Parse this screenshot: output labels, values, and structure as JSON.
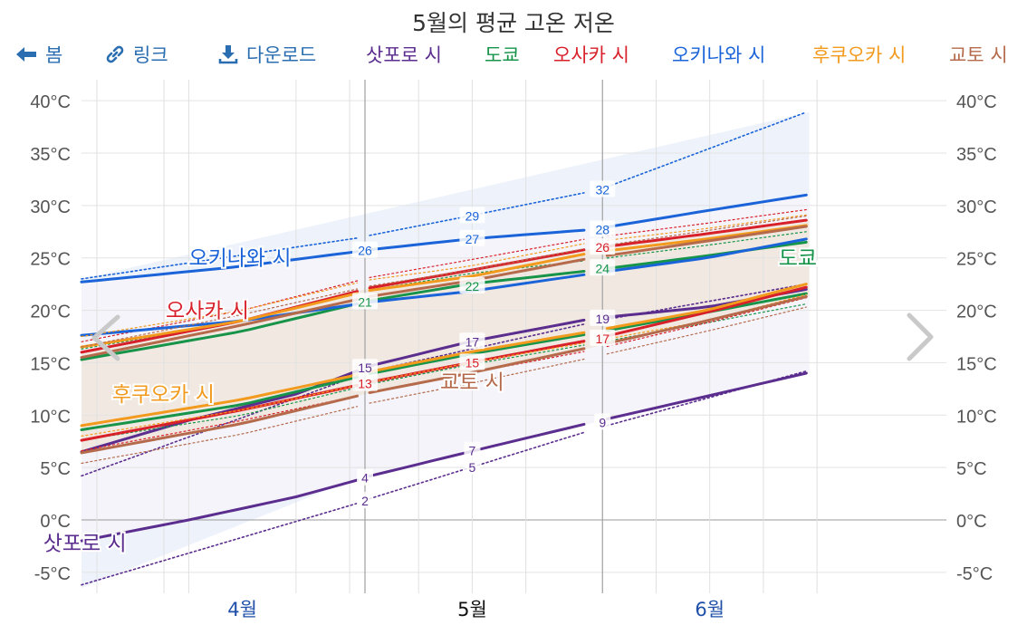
{
  "chart_data": {
    "type": "line",
    "title": "5월의 평균 고온 저온",
    "x_range": [
      "03-25",
      "06-29"
    ],
    "ylim": [
      -7,
      42
    ],
    "y_ticks": [
      -5,
      0,
      5,
      10,
      15,
      20,
      25,
      30,
      35,
      40
    ],
    "y_tick_labels": [
      "-5°C",
      "0°C",
      "5°C",
      "10°C",
      "15°C",
      "20°C",
      "25°C",
      "30°C",
      "35°C",
      "40°C"
    ],
    "month_labels": [
      {
        "date": "04-15",
        "label": "4월"
      },
      {
        "date": "05-15",
        "label": "5월"
      },
      {
        "date": "06-15",
        "label": "6월"
      }
    ],
    "month_boundaries": [
      "05-01",
      "06-01"
    ],
    "week_gridlines": [
      "04-08",
      "04-22",
      "04-29",
      "05-08",
      "05-15",
      "05-22",
      "06-08",
      "06-15",
      "06-22",
      "06-29"
    ],
    "band": {
      "low": [
        [
          "03-25",
          -6.5
        ],
        [
          "06-28",
          21.2
        ]
      ],
      "high": [
        [
          "03-25",
          23
        ],
        [
          "06-28",
          38.9
        ]
      ]
    },
    "series": [
      {
        "name": "삿포로 시",
        "color": "#5b2d8e",
        "high": [
          [
            "03-25",
            6.5
          ],
          [
            "04-08",
            9.5
          ],
          [
            "04-22",
            12.0
          ],
          [
            "05-01",
            14.5
          ],
          [
            "05-15",
            17.0
          ],
          [
            "05-31",
            19.2
          ],
          [
            "06-15",
            20.3
          ],
          [
            "06-28",
            22.0
          ]
        ],
        "low": [
          [
            "03-25",
            -2.0
          ],
          [
            "04-08",
            0.0
          ],
          [
            "04-22",
            2.2
          ],
          [
            "05-01",
            4.0
          ],
          [
            "05-15",
            6.5
          ],
          [
            "05-31",
            9.3
          ],
          [
            "06-15",
            11.8
          ],
          [
            "06-28",
            14.0
          ]
        ],
        "high_p90": [
          [
            "03-25",
            4.2
          ],
          [
            "05-01",
            14.0
          ],
          [
            "06-01",
            19.0
          ],
          [
            "06-28",
            22.5
          ]
        ],
        "low_p10": [
          [
            "03-25",
            -6.2
          ],
          [
            "05-01",
            1.8
          ],
          [
            "06-01",
            8.8
          ],
          [
            "06-28",
            14.2
          ]
        ]
      },
      {
        "name": "도쿄",
        "color": "#17944a",
        "high": [
          [
            "03-25",
            15.3
          ],
          [
            "04-15",
            18.0
          ],
          [
            "05-01",
            20.8
          ],
          [
            "05-15",
            22.5
          ],
          [
            "05-31",
            23.8
          ],
          [
            "06-15",
            25.2
          ],
          [
            "06-28",
            26.5
          ]
        ],
        "low": [
          [
            "03-25",
            8.6
          ],
          [
            "04-15",
            11.0
          ],
          [
            "05-01",
            13.8
          ],
          [
            "05-15",
            15.8
          ],
          [
            "05-31",
            17.8
          ],
          [
            "06-15",
            19.8
          ],
          [
            "06-28",
            21.6
          ]
        ]
      },
      {
        "name": "오사카 시",
        "color": "#d8202a",
        "high": [
          [
            "03-25",
            16.0
          ],
          [
            "04-15",
            19.0
          ],
          [
            "05-01",
            22.0
          ],
          [
            "05-15",
            23.8
          ],
          [
            "05-31",
            25.9
          ],
          [
            "06-15",
            27.3
          ],
          [
            "06-28",
            28.6
          ]
        ],
        "low": [
          [
            "03-25",
            7.6
          ],
          [
            "04-15",
            10.5
          ],
          [
            "05-01",
            13.0
          ],
          [
            "05-15",
            15.0
          ],
          [
            "05-31",
            17.2
          ],
          [
            "06-15",
            19.8
          ],
          [
            "06-28",
            22.2
          ]
        ]
      },
      {
        "name": "오키나와 시",
        "color": "#1a63d8",
        "high": [
          [
            "03-25",
            22.7
          ],
          [
            "04-15",
            24.2
          ],
          [
            "05-01",
            25.7
          ],
          [
            "05-15",
            26.8
          ],
          [
            "05-31",
            27.7
          ],
          [
            "06-15",
            29.5
          ],
          [
            "06-28",
            31.0
          ]
        ],
        "low": [
          [
            "03-25",
            17.6
          ],
          [
            "04-15",
            19.0
          ],
          [
            "05-01",
            20.7
          ],
          [
            "05-15",
            21.8
          ],
          [
            "05-31",
            23.5
          ],
          [
            "06-15",
            25.0
          ],
          [
            "06-28",
            26.8
          ]
        ],
        "high_p90": [
          [
            "03-25",
            23.0
          ],
          [
            "05-01",
            27.0
          ],
          [
            "05-15",
            29.0
          ],
          [
            "06-01",
            31.5
          ],
          [
            "06-28",
            38.9
          ]
        ]
      },
      {
        "name": "후쿠오카 시",
        "color": "#f29a1e",
        "high": [
          [
            "03-25",
            16.5
          ],
          [
            "04-15",
            19.0
          ],
          [
            "05-01",
            21.8
          ],
          [
            "05-15",
            23.2
          ],
          [
            "05-31",
            25.5
          ],
          [
            "06-15",
            26.8
          ],
          [
            "06-28",
            28.1
          ]
        ],
        "low": [
          [
            "03-25",
            9.0
          ],
          [
            "04-15",
            11.5
          ],
          [
            "05-01",
            14.0
          ],
          [
            "05-15",
            16.0
          ],
          [
            "05-31",
            18.0
          ],
          [
            "06-15",
            20.0
          ],
          [
            "06-28",
            22.5
          ]
        ]
      },
      {
        "name": "교토 시",
        "color": "#b56a4b",
        "high": [
          [
            "03-25",
            15.5
          ],
          [
            "04-15",
            18.6
          ],
          [
            "05-01",
            21.2
          ],
          [
            "05-15",
            22.8
          ],
          [
            "05-31",
            25.0
          ],
          [
            "06-15",
            26.6
          ],
          [
            "06-28",
            28.0
          ]
        ],
        "low": [
          [
            "03-25",
            6.4
          ],
          [
            "04-15",
            9.2
          ],
          [
            "05-01",
            12.0
          ],
          [
            "05-15",
            14.0
          ],
          [
            "05-31",
            16.5
          ],
          [
            "06-15",
            19.0
          ],
          [
            "06-28",
            21.3
          ]
        ]
      }
    ],
    "data_labels": [
      {
        "text": "26",
        "date": "05-01",
        "value": 25.7,
        "color": "#1a63d8"
      },
      {
        "text": "27",
        "date": "05-15",
        "value": 26.8,
        "color": "#1a63d8"
      },
      {
        "text": "28",
        "date": "06-01",
        "value": 27.7,
        "color": "#1a63d8"
      },
      {
        "text": "29",
        "date": "05-15",
        "value": 29.0,
        "color": "#1a63d8"
      },
      {
        "text": "32",
        "date": "06-01",
        "value": 31.5,
        "color": "#1a63d8"
      },
      {
        "text": "26",
        "date": "06-01",
        "value": 26.0,
        "color": "#d8202a"
      },
      {
        "text": "24",
        "date": "06-01",
        "value": 24.0,
        "color": "#17944a"
      },
      {
        "text": "22",
        "date": "05-15",
        "value": 22.3,
        "color": "#17944a"
      },
      {
        "text": "21",
        "date": "05-01",
        "value": 20.8,
        "color": "#17944a"
      },
      {
        "text": "19",
        "date": "06-01",
        "value": 19.2,
        "color": "#5b2d8e"
      },
      {
        "text": "17",
        "date": "05-15",
        "value": 17.0,
        "color": "#5b2d8e"
      },
      {
        "text": "17",
        "date": "06-01",
        "value": 17.3,
        "color": "#d8202a"
      },
      {
        "text": "15",
        "date": "05-01",
        "value": 14.5,
        "color": "#5b2d8e"
      },
      {
        "text": "15",
        "date": "05-15",
        "value": 15.0,
        "color": "#d8202a"
      },
      {
        "text": "13",
        "date": "05-01",
        "value": 13.0,
        "color": "#d8202a"
      },
      {
        "text": "9",
        "date": "06-01",
        "value": 9.3,
        "color": "#5b2d8e"
      },
      {
        "text": "7",
        "date": "05-15",
        "value": 6.6,
        "color": "#5b2d8e"
      },
      {
        "text": "5",
        "date": "05-15",
        "value": 5.0,
        "color": "#5b2d8e"
      },
      {
        "text": "4",
        "date": "05-01",
        "value": 4.0,
        "color": "#5b2d8e"
      },
      {
        "text": "2",
        "date": "05-01",
        "value": 1.8,
        "color": "#5b2d8e"
      }
    ],
    "series_labels": [
      {
        "text": "오키나와 시",
        "date": "04-08",
        "value": 25.0,
        "color": "#1a63d8",
        "anchor": "start"
      },
      {
        "text": "오사카 시",
        "date": "04-05",
        "value": 20.0,
        "color": "#d8202a",
        "anchor": "start"
      },
      {
        "text": "후쿠오카 시",
        "date": "03-29",
        "value": 12.0,
        "color": "#f29a1e",
        "anchor": "start"
      },
      {
        "text": "삿포로 시",
        "date": "03-20",
        "value": -2.2,
        "color": "#5b2d8e",
        "anchor": "start"
      },
      {
        "text": "도쿄",
        "date": "06-29",
        "value": 25.0,
        "color": "#17944a",
        "anchor": "end"
      },
      {
        "text": "교토 시",
        "date": "05-15",
        "value": 13.2,
        "color": "#b56a4b",
        "anchor": "middle"
      }
    ]
  },
  "toolbar": {
    "back_label": "봄",
    "link_label": "링크",
    "download_label": "다운로드",
    "legend": [
      {
        "label": "삿포로 시",
        "color": "#5b2d8e"
      },
      {
        "label": "도쿄",
        "color": "#17944a"
      },
      {
        "label": "오사카 시",
        "color": "#d8202a"
      },
      {
        "label": "오키나와 시",
        "color": "#1a63d8"
      },
      {
        "label": "후쿠오카 시",
        "color": "#f29a1e"
      },
      {
        "label": "교토 시",
        "color": "#b56a4b"
      }
    ],
    "icon_color": "#2a6db0"
  },
  "icons": {
    "back": "arrow-left-icon",
    "link": "link-icon",
    "download": "download-icon",
    "prev": "chevron-left-icon",
    "next": "chevron-right-icon"
  }
}
